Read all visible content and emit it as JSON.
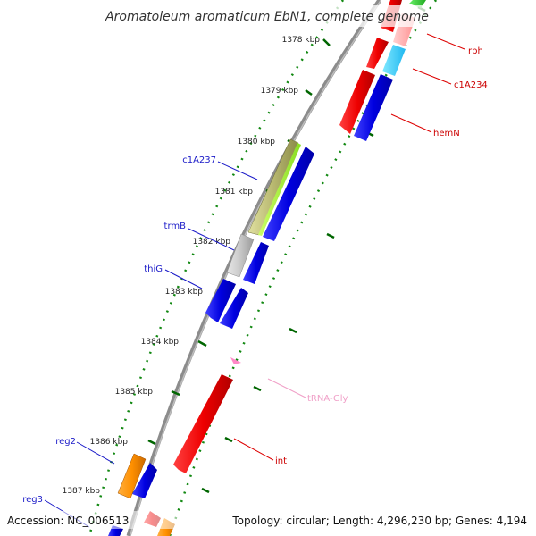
{
  "title": "Aromatoleum aromaticum EbN1, complete genome",
  "footer": {
    "accession": "Accession: NC_006513",
    "info": "Topology: circular; Length: 4,296,230 bp; Genes: 4,194"
  },
  "ticks": [
    "1378 kbp",
    "1379 kbp",
    "1380 kbp",
    "1381 kbp",
    "1382 kbp",
    "1383 kbp",
    "1384 kbp",
    "1385 kbp",
    "1386 kbp",
    "1387 kbp"
  ],
  "genes": {
    "rph": "rph",
    "c1A234": "c1A234",
    "hemN": "hemN",
    "c1A237": "c1A237",
    "trmB": "trmB",
    "thiG": "thiG",
    "tRNA_Gly": "tRNA-Gly",
    "int": "int",
    "reg2": "reg2",
    "reg3": "reg3"
  },
  "colors": {
    "forward": "#0000e6",
    "reverse": "#f00000",
    "trna": "#ff99cc",
    "label_blue": "#1a1ac8",
    "label_red": "#cc0000",
    "label_pink": "#f0a0c8"
  }
}
